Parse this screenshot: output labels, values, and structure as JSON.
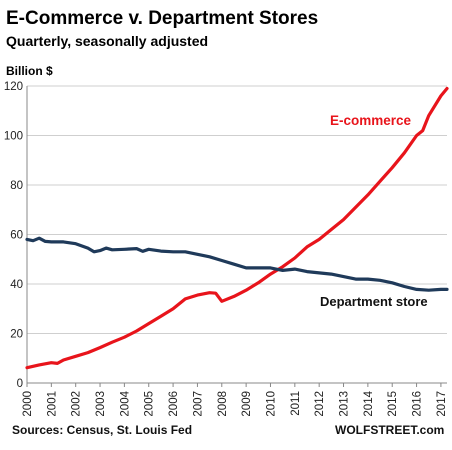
{
  "chart_data": {
    "type": "line",
    "title": "E-Commerce v. Department Stores",
    "subtitle": "Quarterly, seasonally adjusted",
    "unit_label": "Billion $",
    "xlim": [
      2000,
      2017.25
    ],
    "ylim": [
      0,
      120
    ],
    "yticks": [
      0,
      20,
      40,
      60,
      80,
      100,
      120
    ],
    "xticks": [
      "2000",
      "2001",
      "2002",
      "2003",
      "2004",
      "2005",
      "2006",
      "2007",
      "2008",
      "2009",
      "2010",
      "2011",
      "2012",
      "2013",
      "2014",
      "2015",
      "2016",
      "2017"
    ],
    "grid": true,
    "series": [
      {
        "name": "E-commerce",
        "color": "#e8141b",
        "points": [
          [
            2000.0,
            6.2
          ],
          [
            2000.5,
            7.3
          ],
          [
            2001.0,
            8.2
          ],
          [
            2001.25,
            7.9
          ],
          [
            2001.5,
            9.3
          ],
          [
            2002.0,
            10.8
          ],
          [
            2002.5,
            12.3
          ],
          [
            2003.0,
            14.3
          ],
          [
            2003.5,
            16.5
          ],
          [
            2004.0,
            18.5
          ],
          [
            2004.5,
            21.0
          ],
          [
            2005.0,
            24.0
          ],
          [
            2005.5,
            27.0
          ],
          [
            2006.0,
            30.0
          ],
          [
            2006.5,
            34.0
          ],
          [
            2007.0,
            35.5
          ],
          [
            2007.5,
            36.5
          ],
          [
            2007.75,
            36.3
          ],
          [
            2008.0,
            33.0
          ],
          [
            2008.5,
            35.0
          ],
          [
            2009.0,
            37.5
          ],
          [
            2009.5,
            40.5
          ],
          [
            2010.0,
            44.0
          ],
          [
            2010.5,
            47.0
          ],
          [
            2011.0,
            50.5
          ],
          [
            2011.5,
            55.0
          ],
          [
            2012.0,
            58.0
          ],
          [
            2012.5,
            62.0
          ],
          [
            2013.0,
            66.0
          ],
          [
            2013.5,
            71.0
          ],
          [
            2014.0,
            76.0
          ],
          [
            2014.5,
            81.5
          ],
          [
            2015.0,
            87.0
          ],
          [
            2015.5,
            93.0
          ],
          [
            2016.0,
            100.0
          ],
          [
            2016.25,
            102.0
          ],
          [
            2016.5,
            108.0
          ],
          [
            2017.0,
            116.0
          ],
          [
            2017.25,
            119.0
          ]
        ]
      },
      {
        "name": "Department store",
        "color": "#1f3a5a",
        "points": [
          [
            2000.0,
            58.0
          ],
          [
            2000.25,
            57.5
          ],
          [
            2000.5,
            58.5
          ],
          [
            2000.75,
            57.2
          ],
          [
            2001.0,
            57.0
          ],
          [
            2001.5,
            57.0
          ],
          [
            2002.0,
            56.3
          ],
          [
            2002.5,
            54.5
          ],
          [
            2002.75,
            53.0
          ],
          [
            2003.0,
            53.5
          ],
          [
            2003.25,
            54.5
          ],
          [
            2003.5,
            53.8
          ],
          [
            2004.0,
            54.0
          ],
          [
            2004.5,
            54.3
          ],
          [
            2004.75,
            53.2
          ],
          [
            2005.0,
            54.0
          ],
          [
            2005.5,
            53.3
          ],
          [
            2006.0,
            53.0
          ],
          [
            2006.5,
            53.0
          ],
          [
            2007.0,
            52.0
          ],
          [
            2007.5,
            51.0
          ],
          [
            2008.0,
            49.5
          ],
          [
            2008.5,
            48.0
          ],
          [
            2009.0,
            46.5
          ],
          [
            2009.5,
            46.5
          ],
          [
            2010.0,
            46.5
          ],
          [
            2010.5,
            45.5
          ],
          [
            2011.0,
            46.0
          ],
          [
            2011.5,
            45.0
          ],
          [
            2012.0,
            44.5
          ],
          [
            2012.5,
            44.0
          ],
          [
            2013.0,
            43.0
          ],
          [
            2013.5,
            42.0
          ],
          [
            2014.0,
            42.0
          ],
          [
            2014.5,
            41.5
          ],
          [
            2015.0,
            40.5
          ],
          [
            2015.5,
            39.0
          ],
          [
            2016.0,
            37.8
          ],
          [
            2016.5,
            37.5
          ],
          [
            2017.0,
            37.8
          ],
          [
            2017.25,
            37.8
          ]
        ]
      }
    ],
    "annotations": {
      "ecommerce_label": "E-commerce",
      "department_label": "Department store"
    },
    "source": "Sources: Census, St. Louis Fed",
    "brand": "WOLFSTREET.com"
  }
}
